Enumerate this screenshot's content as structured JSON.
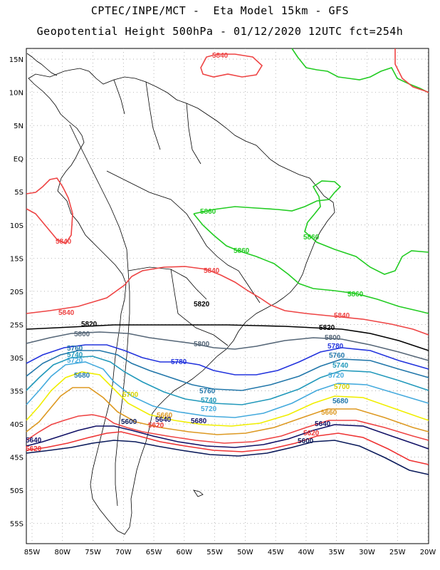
{
  "header": {
    "line1": "CPTEC/INPE/MCT -  Eta Model 15km - GFS",
    "line2": "Geopotential Height 500hPa - 01/12/2020 12UTC fct=254h"
  },
  "map": {
    "lat_labels": [
      "15N",
      "10N",
      "5N",
      "EQ",
      "5S",
      "10S",
      "15S",
      "20S",
      "25S",
      "30S",
      "35S",
      "40S",
      "45S",
      "50S",
      "55S"
    ],
    "lon_labels": [
      "85W",
      "80W",
      "75W",
      "70W",
      "65W",
      "60W",
      "55W",
      "50W",
      "45W",
      "40W",
      "35W",
      "30W",
      "25W",
      "20W"
    ],
    "contour_colors": {
      "5860": "#22cc22",
      "5840": "#ee4444",
      "5820": "#000000",
      "5800": "#556677",
      "5780": "#2233dd",
      "5760": "#2277aa",
      "5740": "#2299bb",
      "5720": "#44aadd",
      "5700": "#f0ee00",
      "5680": "#dd9922",
      "5660": "#ee4444",
      "5640": "#111166",
      "5620": "#ee3333",
      "5600": "#0a1a5a"
    },
    "contour_labels": [
      {
        "text": "5840",
        "color": "#ee4444"
      },
      {
        "text": "5840",
        "color": "#ee4444"
      },
      {
        "text": "5840",
        "color": "#ee4444"
      },
      {
        "text": "5840",
        "color": "#ee4444"
      },
      {
        "text": "5840",
        "color": "#ee4444"
      },
      {
        "text": "5860",
        "color": "#22cc22"
      },
      {
        "text": "5860",
        "color": "#22cc22"
      },
      {
        "text": "5860",
        "color": "#22cc22"
      },
      {
        "text": "5860",
        "color": "#22cc22"
      },
      {
        "text": "5820",
        "color": "#000000"
      },
      {
        "text": "5820",
        "color": "#000000"
      },
      {
        "text": "5820",
        "color": "#000000"
      },
      {
        "text": "5800",
        "color": "#556677"
      },
      {
        "text": "5800",
        "color": "#556677"
      },
      {
        "text": "5800",
        "color": "#556677"
      },
      {
        "text": "5780",
        "color": "#2233dd"
      },
      {
        "text": "5780",
        "color": "#2233dd"
      },
      {
        "text": "5760",
        "color": "#2277aa"
      },
      {
        "text": "5760",
        "color": "#2277aa"
      },
      {
        "text": "5760",
        "color": "#2277aa"
      },
      {
        "text": "5740",
        "color": "#2299bb"
      },
      {
        "text": "5740",
        "color": "#2299bb"
      },
      {
        "text": "5740",
        "color": "#2299bb"
      },
      {
        "text": "5720",
        "color": "#44aadd"
      },
      {
        "text": "5720",
        "color": "#44aadd"
      },
      {
        "text": "5720",
        "color": "#44aadd"
      },
      {
        "text": "5700",
        "color": "#d8d400"
      },
      {
        "text": "5700",
        "color": "#d8d400"
      },
      {
        "text": "5680",
        "color": "#2277aa"
      },
      {
        "text": "5680",
        "color": "#111166"
      },
      {
        "text": "5680",
        "color": "#2277aa"
      },
      {
        "text": "5660",
        "color": "#dd9922"
      },
      {
        "text": "5660",
        "color": "#dd9922"
      },
      {
        "text": "5640",
        "color": "#111166"
      },
      {
        "text": "5640",
        "color": "#111166"
      },
      {
        "text": "5640",
        "color": "#111166"
      },
      {
        "text": "5620",
        "color": "#ee3333"
      },
      {
        "text": "5620",
        "color": "#ee3333"
      },
      {
        "text": "5620",
        "color": "#ee3333"
      },
      {
        "text": "5600",
        "color": "#0a1a5a"
      },
      {
        "text": "5600",
        "color": "#0a1a5a"
      }
    ]
  }
}
